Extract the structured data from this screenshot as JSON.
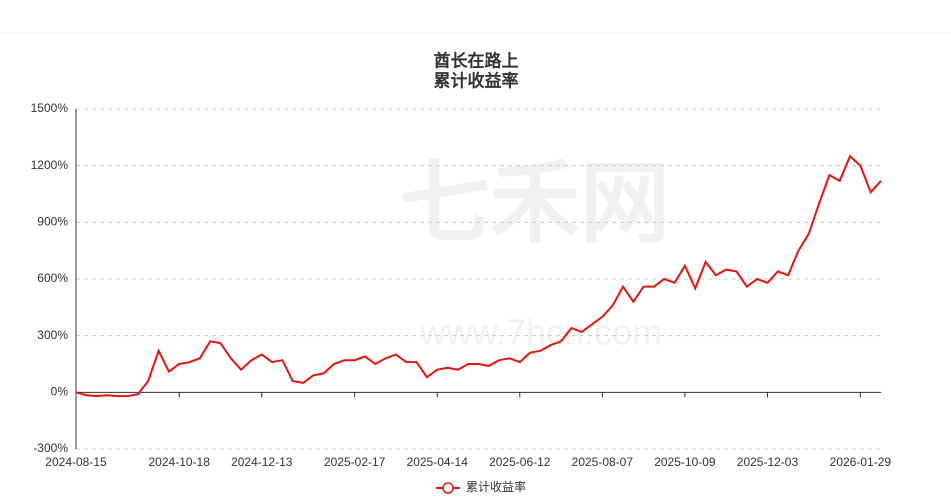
{
  "chart_data": {
    "type": "line",
    "title": "酋长在路上",
    "subtitle": "累计收益率",
    "watermark": [
      "七禾网",
      "www.7hcn.com"
    ],
    "x": [
      "2024-08-15",
      "2024-08-22",
      "2024-08-29",
      "2024-09-05",
      "2024-09-12",
      "2024-09-19",
      "2024-09-26",
      "2024-09-30",
      "2024-10-08",
      "2024-10-11",
      "2024-10-18",
      "2024-10-25",
      "2024-11-01",
      "2024-11-08",
      "2024-11-15",
      "2024-11-22",
      "2024-11-29",
      "2024-12-06",
      "2024-12-13",
      "2024-12-20",
      "2024-12-27",
      "2025-01-03",
      "2025-01-10",
      "2025-01-17",
      "2025-01-24",
      "2025-02-07",
      "2025-02-14",
      "2025-02-17",
      "2025-02-24",
      "2025-03-03",
      "2025-03-10",
      "2025-03-17",
      "2025-03-24",
      "2025-03-31",
      "2025-04-07",
      "2025-04-14",
      "2025-04-21",
      "2025-04-28",
      "2025-05-09",
      "2025-05-16",
      "2025-05-23",
      "2025-05-30",
      "2025-06-06",
      "2025-06-12",
      "2025-06-19",
      "2025-06-26",
      "2025-07-03",
      "2025-07-10",
      "2025-07-17",
      "2025-07-24",
      "2025-07-31",
      "2025-08-07",
      "2025-08-14",
      "2025-08-21",
      "2025-08-28",
      "2025-09-04",
      "2025-09-11",
      "2025-09-18",
      "2025-09-25",
      "2025-10-09",
      "2025-10-16",
      "2025-10-23",
      "2025-10-30",
      "2025-11-06",
      "2025-11-13",
      "2025-11-20",
      "2025-11-27",
      "2025-12-03",
      "2025-12-10",
      "2025-12-17",
      "2025-12-24",
      "2025-12-31",
      "2026-01-07",
      "2026-01-14",
      "2026-01-21",
      "2026-01-26",
      "2026-01-29",
      "2026-02-02",
      "2026-02-03"
    ],
    "series": [
      {
        "name": "累计收益率",
        "color": "#e8140f",
        "values": [
          0,
          -15,
          -20,
          -15,
          -20,
          -20,
          -10,
          60,
          220,
          110,
          150,
          160,
          180,
          270,
          260,
          180,
          120,
          170,
          200,
          160,
          170,
          60,
          50,
          90,
          100,
          150,
          170,
          170,
          190,
          150,
          180,
          200,
          160,
          160,
          80,
          120,
          130,
          120,
          150,
          150,
          140,
          170,
          180,
          160,
          210,
          220,
          250,
          270,
          340,
          320,
          360,
          400,
          460,
          560,
          480,
          560,
          560,
          600,
          580,
          670,
          550,
          690,
          620,
          650,
          640,
          560,
          600,
          580,
          640,
          620,
          750,
          840,
          1000,
          1150,
          1120,
          1250,
          1200,
          1060,
          1120
        ]
      }
    ],
    "ylim": [
      -300,
      1500
    ],
    "yticks": [
      {
        "value": -300,
        "label": "-300%"
      },
      {
        "value": 0,
        "label": "0%"
      },
      {
        "value": 300,
        "label": "300%"
      },
      {
        "value": 600,
        "label": "600%"
      },
      {
        "value": 900,
        "label": "900%"
      },
      {
        "value": 1200,
        "label": "1200%"
      },
      {
        "value": 1500,
        "label": "1500%"
      }
    ],
    "xticks": [
      "2024-08-15",
      "2024-10-18",
      "2024-12-13",
      "2025-02-17",
      "2025-04-14",
      "2025-06-12",
      "2025-08-07",
      "2025-10-09",
      "2025-12-03",
      "2026-01-29"
    ],
    "grid": true
  }
}
